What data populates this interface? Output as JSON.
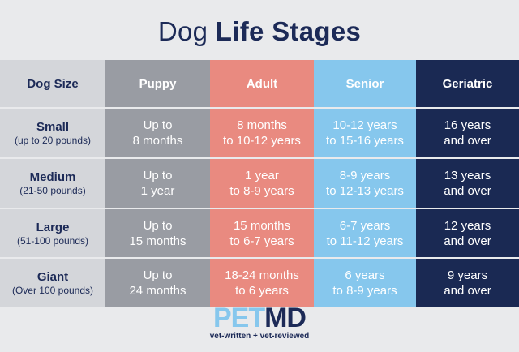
{
  "title": {
    "regular": "Dog",
    "bold": "Life Stages"
  },
  "headers": [
    "Dog Size",
    "Puppy",
    "Adult",
    "Senior",
    "Geriatric"
  ],
  "rows": [
    {
      "size": "Small",
      "range": "(up to 20 pounds)",
      "puppy": [
        "Up to",
        "8 months"
      ],
      "adult": [
        "8 months",
        "to 10-12 years"
      ],
      "senior": [
        "10-12 years",
        "to 15-16 years"
      ],
      "geriatric": [
        "16 years",
        "and over"
      ]
    },
    {
      "size": "Medium",
      "range": "(21-50 pounds)",
      "puppy": [
        "Up to",
        "1 year"
      ],
      "adult": [
        "1 year",
        "to 8-9 years"
      ],
      "senior": [
        "8-9 years",
        "to 12-13 years"
      ],
      "geriatric": [
        "13 years",
        "and over"
      ]
    },
    {
      "size": "Large",
      "range": "(51-100 pounds)",
      "puppy": [
        "Up to",
        "15 months"
      ],
      "adult": [
        "15 months",
        "to 6-7 years"
      ],
      "senior": [
        "6-7 years",
        "to 11-12 years"
      ],
      "geriatric": [
        "12 years",
        "and over"
      ]
    },
    {
      "size": "Giant",
      "range": "(Over 100 pounds)",
      "puppy": [
        "Up to",
        "24 months"
      ],
      "adult": [
        "18-24 months",
        "to 6 years"
      ],
      "senior": [
        "6 years",
        "to 8-9 years"
      ],
      "geriatric": [
        "9 years",
        "and over"
      ]
    }
  ],
  "logo": {
    "pet": "PET",
    "md": "MD",
    "tagline": "vet-written + vet-reviewed"
  },
  "colors": {
    "size_col": "#d4d6da",
    "puppy": "#999ca3",
    "adult": "#e98a80",
    "senior": "#86c7ed",
    "geriatric": "#1a2953",
    "navy_text": "#1c2a57"
  }
}
